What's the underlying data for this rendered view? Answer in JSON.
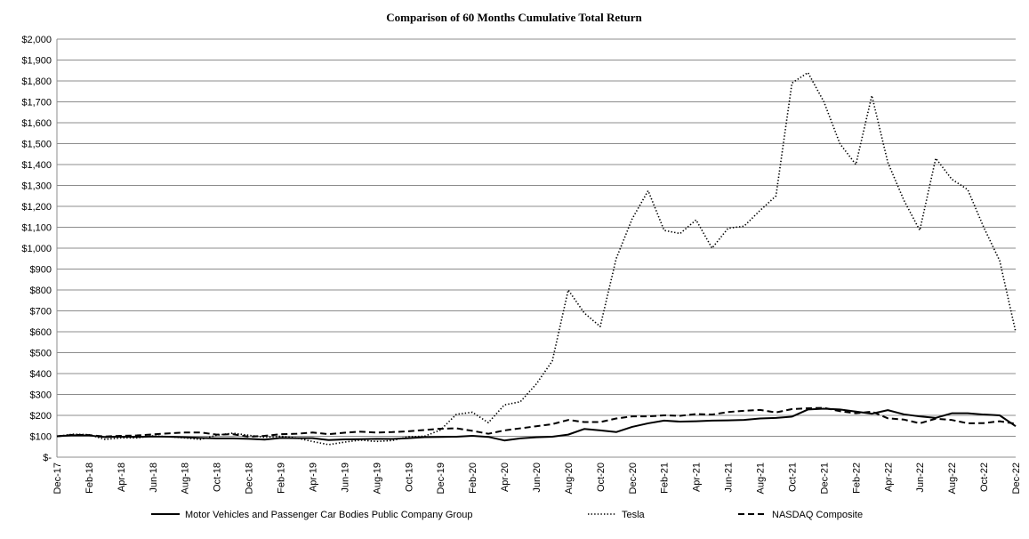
{
  "chart_data": {
    "type": "line",
    "title": "Comparison of 60 Months Cumulative Total Return",
    "xlabel": "",
    "ylabel": "",
    "ylim": [
      0,
      2000
    ],
    "y_step": 100,
    "y_tick_labels": [
      "$-",
      "$100",
      "$200",
      "$300",
      "$400",
      "$500",
      "$600",
      "$700",
      "$800",
      "$900",
      "$1,000",
      "$1,100",
      "$1,200",
      "$1,300",
      "$1,400",
      "$1,500",
      "$1,600",
      "$1,700",
      "$1,800",
      "$1,900",
      "$2,000"
    ],
    "x": [
      "Dec-17",
      "Jan-18",
      "Feb-18",
      "Mar-18",
      "Apr-18",
      "May-18",
      "Jun-18",
      "Jul-18",
      "Aug-18",
      "Sep-18",
      "Oct-18",
      "Nov-18",
      "Dec-18",
      "Jan-19",
      "Feb-19",
      "Mar-19",
      "Apr-19",
      "May-19",
      "Jun-19",
      "Jul-19",
      "Aug-19",
      "Sep-19",
      "Oct-19",
      "Nov-19",
      "Dec-19",
      "Jan-20",
      "Feb-20",
      "Mar-20",
      "Apr-20",
      "May-20",
      "Jun-20",
      "Jul-20",
      "Aug-20",
      "Sep-20",
      "Oct-20",
      "Nov-20",
      "Dec-20",
      "Jan-21",
      "Feb-21",
      "Mar-21",
      "Apr-21",
      "May-21",
      "Jun-21",
      "Jul-21",
      "Aug-21",
      "Sep-21",
      "Oct-21",
      "Nov-21",
      "Dec-21",
      "Jan-22",
      "Feb-22",
      "Mar-22",
      "Apr-22",
      "May-22",
      "Jun-22",
      "Jul-22",
      "Aug-22",
      "Sep-22",
      "Oct-22",
      "Nov-22",
      "Dec-22"
    ],
    "x_tick_labels": [
      "Dec-17",
      "Feb-18",
      "Apr-18",
      "Jun-18",
      "Aug-18",
      "Oct-18",
      "Dec-18",
      "Feb-19",
      "Apr-19",
      "Jun-19",
      "Aug-19",
      "Oct-19",
      "Dec-19",
      "Feb-20",
      "Apr-20",
      "Jun-20",
      "Aug-20",
      "Oct-20",
      "Dec-20",
      "Feb-21",
      "Apr-21",
      "Jun-21",
      "Aug-21",
      "Oct-21",
      "Dec-21",
      "Feb-22",
      "Apr-22",
      "Jun-22",
      "Aug-22",
      "Oct-22",
      "Dec-22"
    ],
    "grid": true,
    "legend_position": "bottom",
    "series": [
      {
        "name": "Motor Vehicles and Passenger Car Bodies Public Company Group",
        "style": "solid",
        "color": "#000000",
        "values": [
          100,
          105,
          104,
          96,
          98,
          97,
          99,
          98,
          95,
          92,
          90,
          90,
          88,
          84,
          92,
          91,
          91,
          82,
          85,
          86,
          88,
          87,
          91,
          96,
          97,
          98,
          102,
          97,
          80,
          90,
          95,
          98,
          108,
          135,
          128,
          120,
          145,
          162,
          175,
          170,
          172,
          175,
          176,
          178,
          185,
          188,
          194,
          228,
          232,
          228,
          218,
          208,
          225,
          205,
          195,
          188,
          210,
          210,
          204,
          200,
          148
        ]
      },
      {
        "name": "Tesla",
        "style": "dotted",
        "color": "#000000",
        "values": [
          100,
          110,
          108,
          85,
          92,
          92,
          102,
          98,
          92,
          85,
          105,
          115,
          105,
          95,
          100,
          92,
          75,
          60,
          72,
          82,
          75,
          80,
          98,
          100,
          130,
          205,
          215,
          165,
          250,
          265,
          350,
          460,
          800,
          690,
          625,
          950,
          1140,
          1275,
          1085,
          1070,
          1135,
          1000,
          1095,
          1105,
          1180,
          1250,
          1790,
          1840,
          1700,
          1500,
          1400,
          1730,
          1410,
          1230,
          1085,
          1430,
          1330,
          1280,
          1100,
          940,
          600
        ]
      },
      {
        "name": "NASDAQ Composite",
        "style": "dashed",
        "color": "#000000",
        "values": [
          100,
          107,
          106,
          99,
          102,
          104,
          109,
          114,
          118,
          118,
          108,
          110,
          98,
          102,
          110,
          112,
          118,
          110,
          117,
          122,
          118,
          120,
          124,
          130,
          136,
          138,
          126,
          112,
          128,
          138,
          148,
          158,
          178,
          168,
          168,
          185,
          195,
          195,
          200,
          198,
          206,
          204,
          216,
          222,
          226,
          214,
          230,
          234,
          236,
          220,
          210,
          218,
          186,
          180,
          162,
          184,
          178,
          162,
          163,
          172,
          160
        ]
      }
    ]
  }
}
